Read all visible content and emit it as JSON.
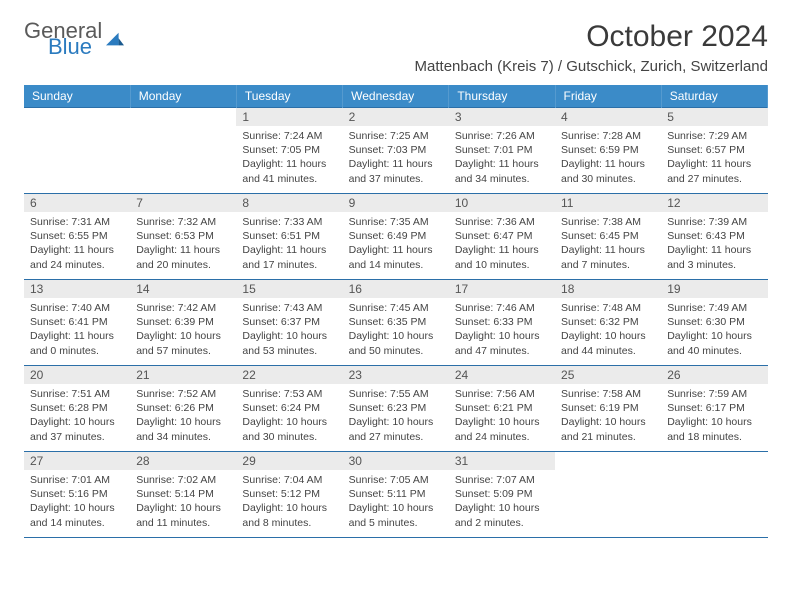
{
  "brand": {
    "word1": "General",
    "word2": "Blue"
  },
  "title": "October 2024",
  "location": "Mattenbach (Kreis 7) / Gutschick, Zurich, Switzerland",
  "colors": {
    "header_bg": "#3b8bc8",
    "header_text": "#ffffff",
    "row_border": "#2b6fa8",
    "daynum_bg": "#ebebeb",
    "brand_gray": "#5a5a5a",
    "brand_blue": "#2b7bbf"
  },
  "weekdays": [
    "Sunday",
    "Monday",
    "Tuesday",
    "Wednesday",
    "Thursday",
    "Friday",
    "Saturday"
  ],
  "grid": [
    [
      {
        "empty": true
      },
      {
        "empty": true
      },
      {
        "n": "1",
        "sunrise": "7:24 AM",
        "sunset": "7:05 PM",
        "dl": "11 hours and 41 minutes."
      },
      {
        "n": "2",
        "sunrise": "7:25 AM",
        "sunset": "7:03 PM",
        "dl": "11 hours and 37 minutes."
      },
      {
        "n": "3",
        "sunrise": "7:26 AM",
        "sunset": "7:01 PM",
        "dl": "11 hours and 34 minutes."
      },
      {
        "n": "4",
        "sunrise": "7:28 AM",
        "sunset": "6:59 PM",
        "dl": "11 hours and 30 minutes."
      },
      {
        "n": "5",
        "sunrise": "7:29 AM",
        "sunset": "6:57 PM",
        "dl": "11 hours and 27 minutes."
      }
    ],
    [
      {
        "n": "6",
        "sunrise": "7:31 AM",
        "sunset": "6:55 PM",
        "dl": "11 hours and 24 minutes."
      },
      {
        "n": "7",
        "sunrise": "7:32 AM",
        "sunset": "6:53 PM",
        "dl": "11 hours and 20 minutes."
      },
      {
        "n": "8",
        "sunrise": "7:33 AM",
        "sunset": "6:51 PM",
        "dl": "11 hours and 17 minutes."
      },
      {
        "n": "9",
        "sunrise": "7:35 AM",
        "sunset": "6:49 PM",
        "dl": "11 hours and 14 minutes."
      },
      {
        "n": "10",
        "sunrise": "7:36 AM",
        "sunset": "6:47 PM",
        "dl": "11 hours and 10 minutes."
      },
      {
        "n": "11",
        "sunrise": "7:38 AM",
        "sunset": "6:45 PM",
        "dl": "11 hours and 7 minutes."
      },
      {
        "n": "12",
        "sunrise": "7:39 AM",
        "sunset": "6:43 PM",
        "dl": "11 hours and 3 minutes."
      }
    ],
    [
      {
        "n": "13",
        "sunrise": "7:40 AM",
        "sunset": "6:41 PM",
        "dl": "11 hours and 0 minutes."
      },
      {
        "n": "14",
        "sunrise": "7:42 AM",
        "sunset": "6:39 PM",
        "dl": "10 hours and 57 minutes."
      },
      {
        "n": "15",
        "sunrise": "7:43 AM",
        "sunset": "6:37 PM",
        "dl": "10 hours and 53 minutes."
      },
      {
        "n": "16",
        "sunrise": "7:45 AM",
        "sunset": "6:35 PM",
        "dl": "10 hours and 50 minutes."
      },
      {
        "n": "17",
        "sunrise": "7:46 AM",
        "sunset": "6:33 PM",
        "dl": "10 hours and 47 minutes."
      },
      {
        "n": "18",
        "sunrise": "7:48 AM",
        "sunset": "6:32 PM",
        "dl": "10 hours and 44 minutes."
      },
      {
        "n": "19",
        "sunrise": "7:49 AM",
        "sunset": "6:30 PM",
        "dl": "10 hours and 40 minutes."
      }
    ],
    [
      {
        "n": "20",
        "sunrise": "7:51 AM",
        "sunset": "6:28 PM",
        "dl": "10 hours and 37 minutes."
      },
      {
        "n": "21",
        "sunrise": "7:52 AM",
        "sunset": "6:26 PM",
        "dl": "10 hours and 34 minutes."
      },
      {
        "n": "22",
        "sunrise": "7:53 AM",
        "sunset": "6:24 PM",
        "dl": "10 hours and 30 minutes."
      },
      {
        "n": "23",
        "sunrise": "7:55 AM",
        "sunset": "6:23 PM",
        "dl": "10 hours and 27 minutes."
      },
      {
        "n": "24",
        "sunrise": "7:56 AM",
        "sunset": "6:21 PM",
        "dl": "10 hours and 24 minutes."
      },
      {
        "n": "25",
        "sunrise": "7:58 AM",
        "sunset": "6:19 PM",
        "dl": "10 hours and 21 minutes."
      },
      {
        "n": "26",
        "sunrise": "7:59 AM",
        "sunset": "6:17 PM",
        "dl": "10 hours and 18 minutes."
      }
    ],
    [
      {
        "n": "27",
        "sunrise": "7:01 AM",
        "sunset": "5:16 PM",
        "dl": "10 hours and 14 minutes."
      },
      {
        "n": "28",
        "sunrise": "7:02 AM",
        "sunset": "5:14 PM",
        "dl": "10 hours and 11 minutes."
      },
      {
        "n": "29",
        "sunrise": "7:04 AM",
        "sunset": "5:12 PM",
        "dl": "10 hours and 8 minutes."
      },
      {
        "n": "30",
        "sunrise": "7:05 AM",
        "sunset": "5:11 PM",
        "dl": "10 hours and 5 minutes."
      },
      {
        "n": "31",
        "sunrise": "7:07 AM",
        "sunset": "5:09 PM",
        "dl": "10 hours and 2 minutes."
      },
      {
        "empty": true
      },
      {
        "empty": true
      }
    ]
  ],
  "labels": {
    "sunrise": "Sunrise: ",
    "sunset": "Sunset: ",
    "daylight": "Daylight: "
  }
}
